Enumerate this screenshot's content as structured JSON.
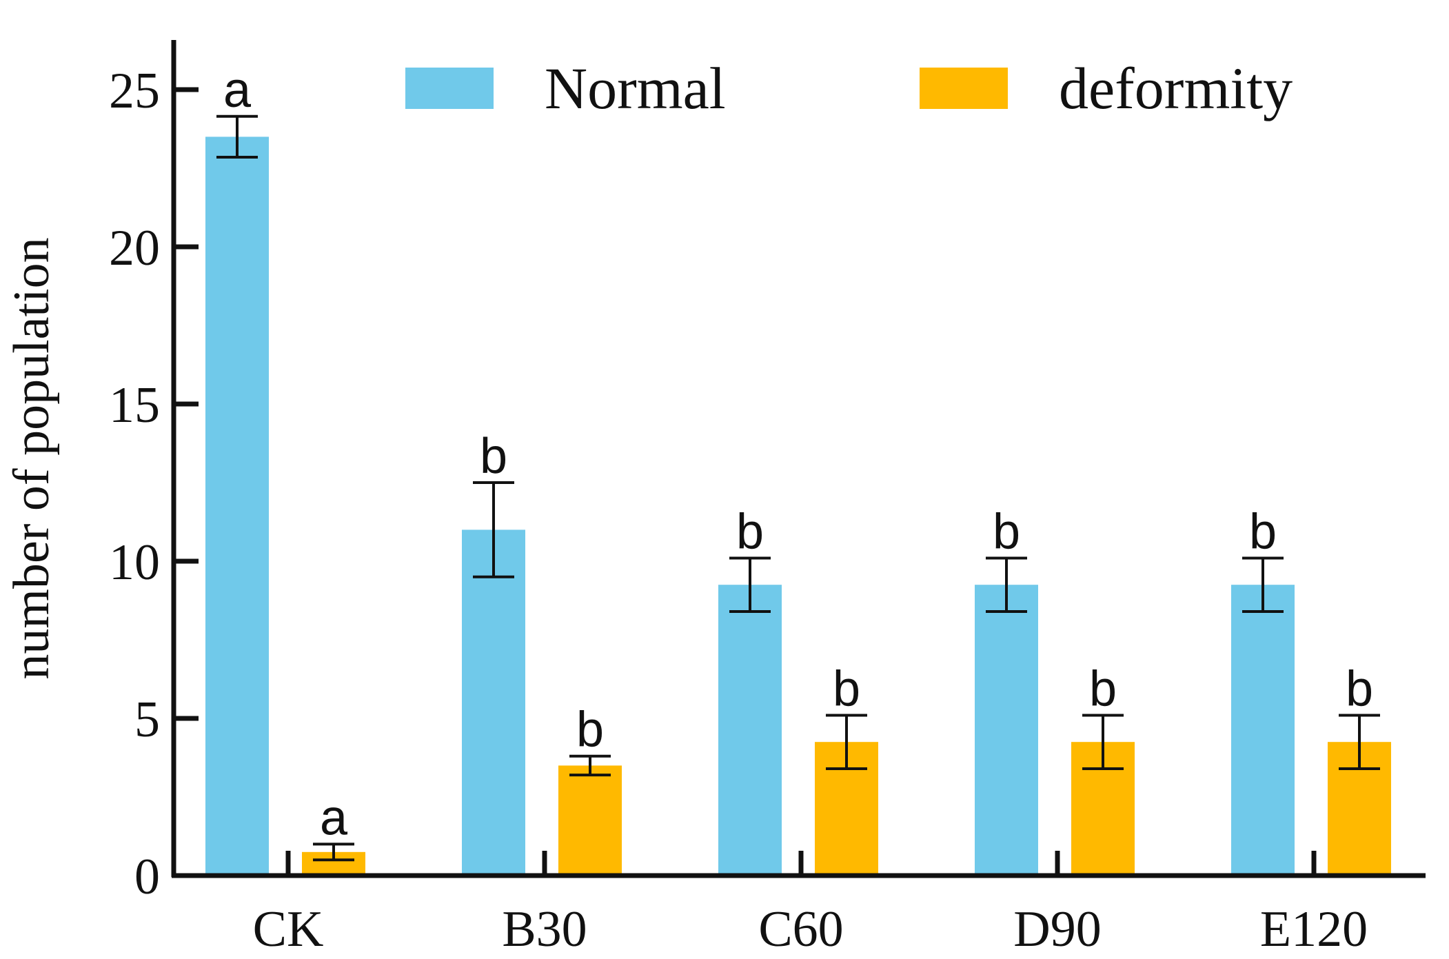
{
  "chart_data": {
    "type": "bar",
    "title": "",
    "xlabel": "",
    "ylabel": "number of population",
    "ylim": [
      0,
      26.5
    ],
    "yticks": [
      0,
      5,
      10,
      15,
      20,
      25
    ],
    "categories": [
      "CK",
      "B30",
      "C60",
      "D90",
      "E120"
    ],
    "grid": false,
    "legend_position": "top",
    "series": [
      {
        "name": "Normal",
        "color": "#70C9EA",
        "values": [
          23.5,
          11.0,
          9.25,
          9.25,
          9.25
        ],
        "errors": [
          0.65,
          1.5,
          0.85,
          0.85,
          0.85
        ],
        "labels": [
          "a",
          "b",
          "b",
          "b",
          "b"
        ]
      },
      {
        "name": "deformity",
        "color": "#FFB900",
        "values": [
          0.75,
          3.5,
          4.25,
          4.25,
          4.25
        ],
        "errors": [
          0.25,
          0.3,
          0.85,
          0.85,
          0.85
        ],
        "labels": [
          "a",
          "b",
          "b",
          "b",
          "b"
        ]
      }
    ]
  }
}
